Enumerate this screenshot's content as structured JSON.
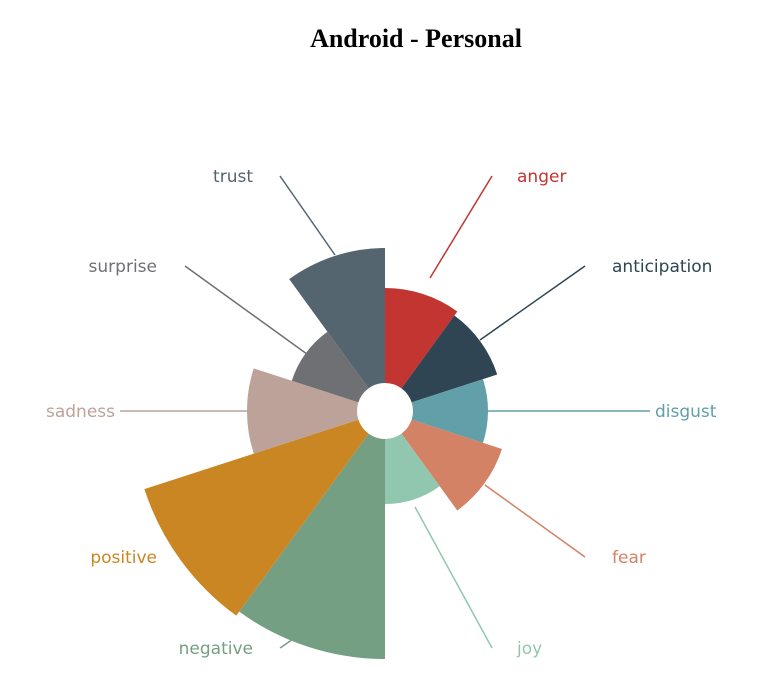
{
  "chart_data": {
    "type": "nightingale-rose",
    "title": "Android - Personal",
    "categories": [
      "anger",
      "anticipation",
      "disgust",
      "fear",
      "joy",
      "negative",
      "positive",
      "sadness",
      "surprise",
      "trust"
    ],
    "values": [
      95,
      90,
      75,
      95,
      65,
      220,
      225,
      110,
      70,
      135
    ],
    "colors": [
      "#c23531",
      "#2f4554",
      "#61a0a8",
      "#d48265",
      "#91c7ae",
      "#749f83",
      "#ca8622",
      "#bda29a",
      "#6e7074",
      "#546570"
    ],
    "legend": "none",
    "grid": false
  }
}
